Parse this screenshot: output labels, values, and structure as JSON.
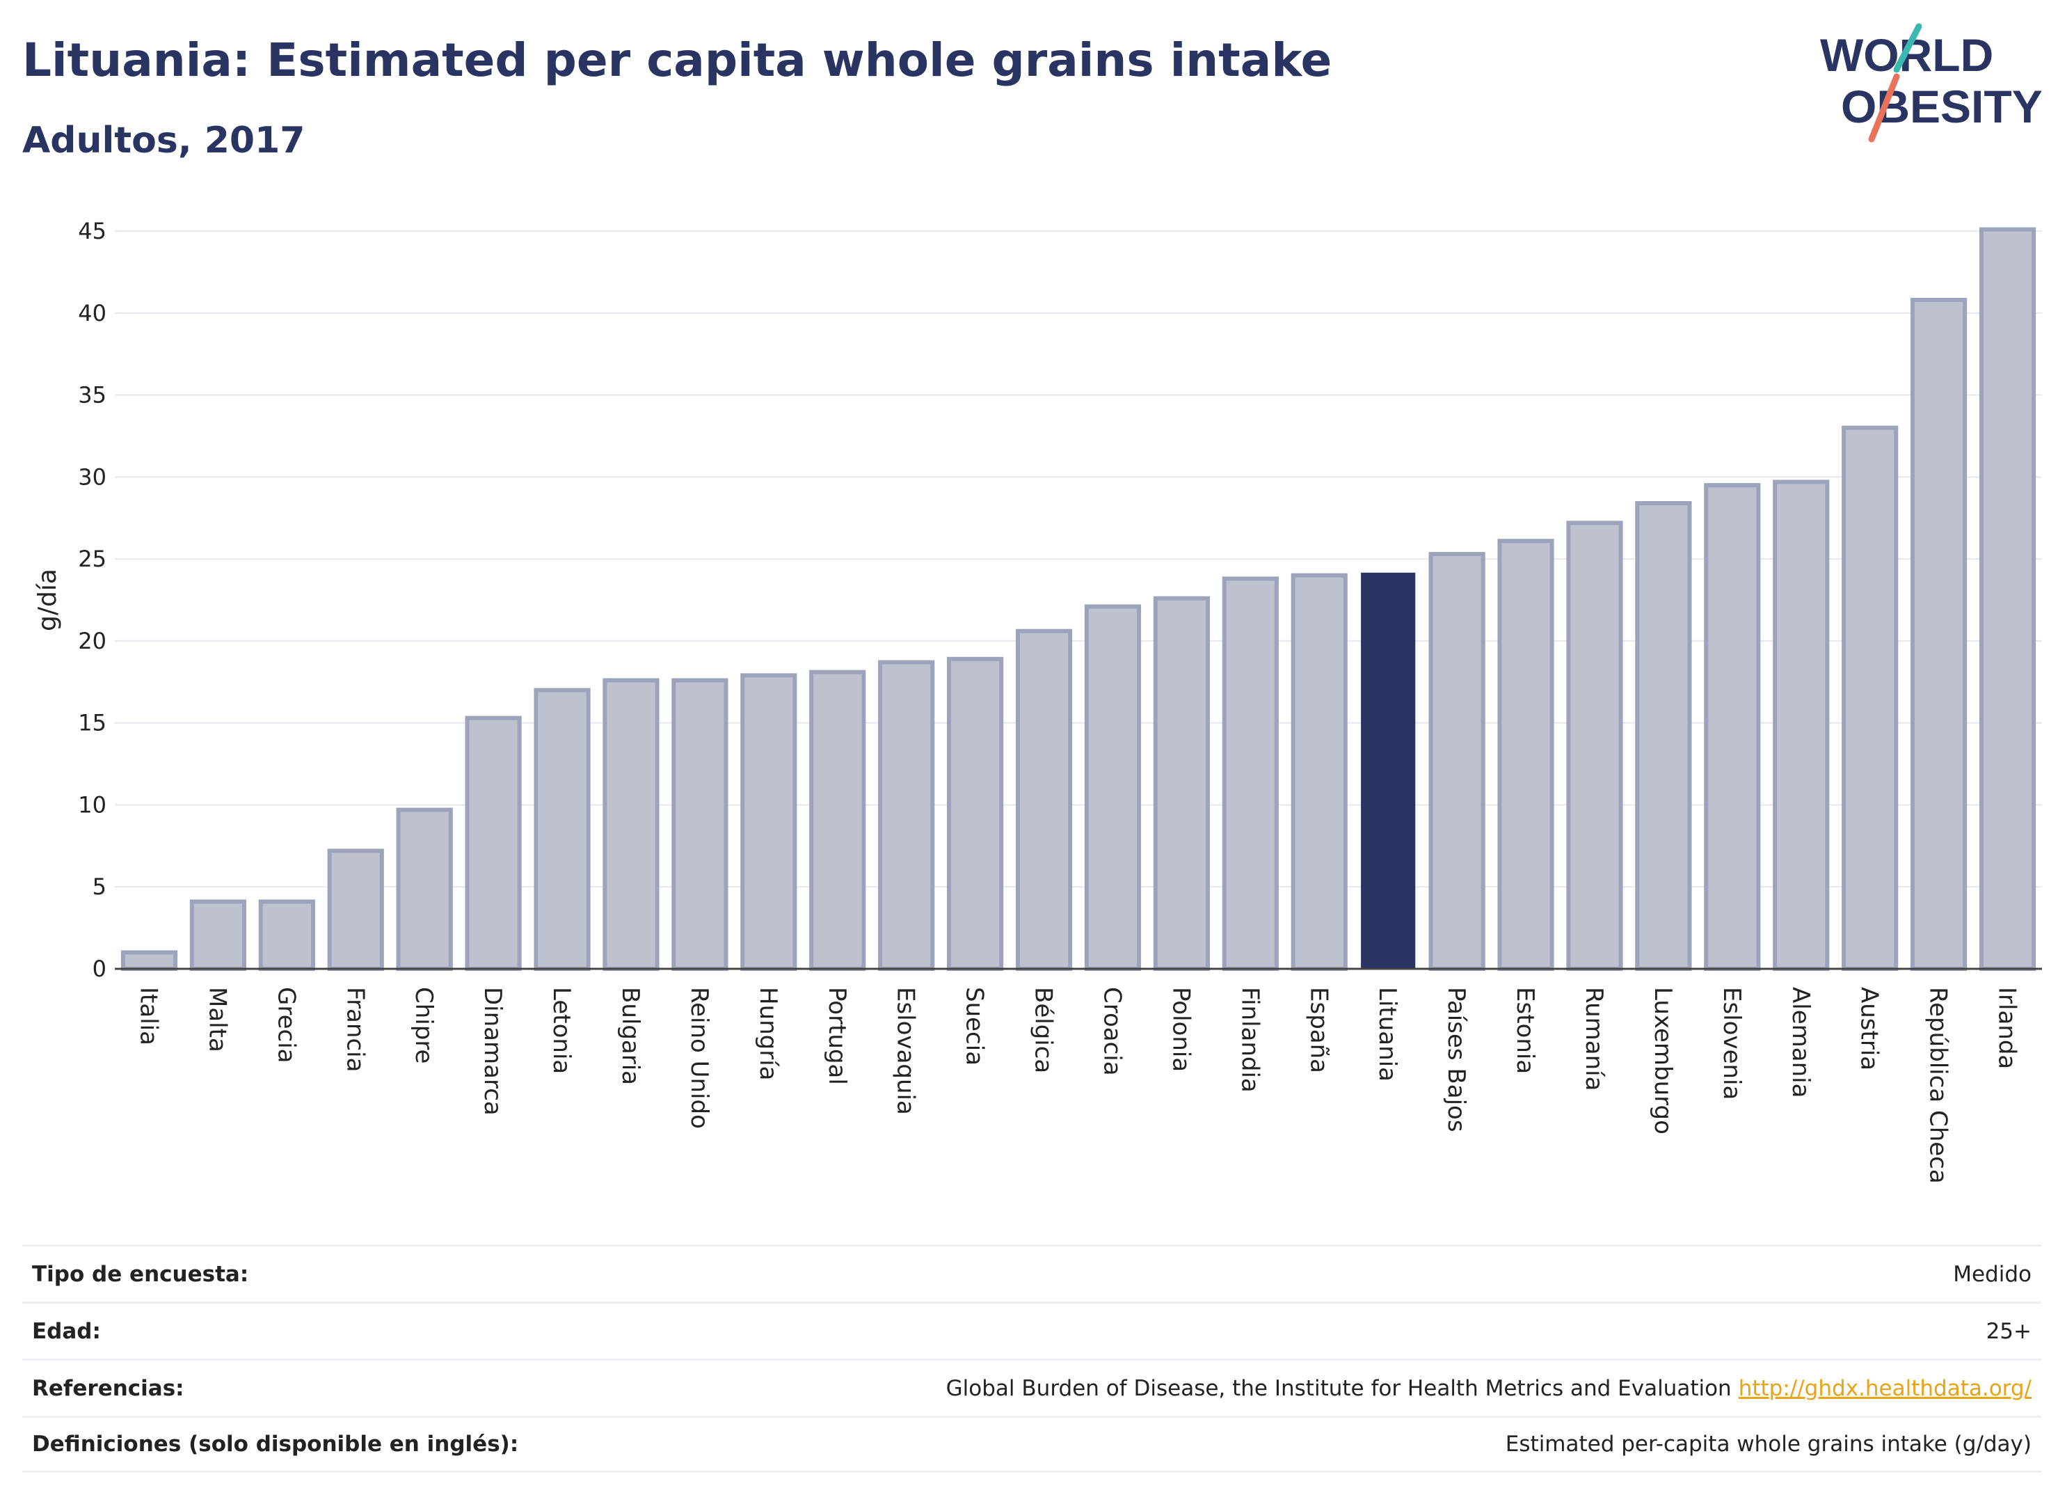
{
  "header": {
    "title": "Lituania: Estimated per capita whole grains intake",
    "subtitle": "Adultos, 2017",
    "logo_line1": "WORLD",
    "logo_line2": "OBESITY"
  },
  "colors": {
    "bar": "#bec1cf",
    "bar_border": "#9ea3bc",
    "highlight": "#293462",
    "title": "#293462",
    "logo_teal": "#3cb8b2",
    "logo_coral": "#e8735a",
    "link": "#e8a317"
  },
  "chart_data": {
    "type": "bar",
    "title": "",
    "xlabel": "",
    "ylabel": "g/día",
    "ylim": [
      0,
      45
    ],
    "yticks": [
      0,
      5,
      10,
      15,
      20,
      25,
      30,
      35,
      40,
      45
    ],
    "grid": true,
    "highlight": "Lituania",
    "categories": [
      "Italia",
      "Malta",
      "Grecia",
      "Francia",
      "Chipre",
      "Dinamarca",
      "Letonia",
      "Bulgaria",
      "Reino Unido",
      "Hungría",
      "Portugal",
      "Eslovaquia",
      "Suecia",
      "Bélgica",
      "Croacia",
      "Polonia",
      "Finlandia",
      "España",
      "Lituania",
      "Países Bajos",
      "Estonia",
      "Rumanía",
      "Luxemburgo",
      "Eslovenia",
      "Alemania",
      "Austria",
      "República Checa",
      "Irlanda"
    ],
    "values": [
      1.0,
      4.1,
      4.1,
      7.2,
      9.7,
      15.3,
      17.0,
      17.6,
      17.6,
      17.9,
      18.1,
      18.7,
      18.9,
      20.6,
      22.1,
      22.6,
      23.8,
      24.0,
      24.1,
      25.3,
      26.1,
      27.2,
      28.4,
      29.5,
      29.7,
      33.0,
      40.8,
      45.1
    ]
  },
  "info": [
    {
      "key": "Tipo de encuesta:",
      "value": "Medido",
      "link": ""
    },
    {
      "key": "Edad:",
      "value": "25+",
      "link": ""
    },
    {
      "key": "Referencias:",
      "value": "Global Burden of Disease, the Institute for Health Metrics and Evaluation",
      "link": "http://ghdx.healthdata.org/"
    },
    {
      "key": "Definiciones (solo disponible en inglés):",
      "value": "Estimated per-capita whole grains intake (g/day)",
      "link": ""
    }
  ]
}
